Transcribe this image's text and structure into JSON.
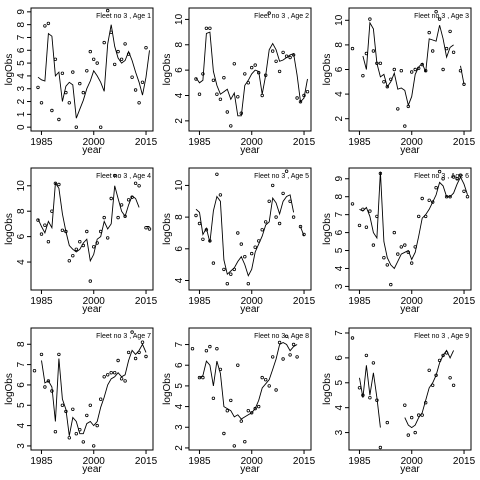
{
  "chart_data": [
    {
      "type": "scatter",
      "title": "Fleet no 3 , Age 1",
      "xlabel": "year",
      "ylabel": "logObs",
      "xlim": [
        1982,
        2017
      ],
      "ylim": [
        -0.3,
        9.3
      ],
      "xticks": [
        1985,
        2000,
        2015
      ],
      "yticks": [
        0,
        1,
        2,
        3,
        4,
        5,
        6,
        7,
        8,
        9
      ],
      "years": [
        1983,
        1984,
        1985,
        1986,
        1987,
        1988,
        1989,
        1990,
        1991,
        1992,
        1993,
        1994,
        1995,
        1996,
        1997,
        1998,
        1999,
        2000,
        2001,
        2002,
        2003,
        2004,
        2005,
        2006,
        2007,
        2008,
        2009,
        2010,
        2011,
        2012,
        2013,
        2014,
        2015,
        2016
      ],
      "observed": [
        null,
        3.1,
        1.9,
        7.9,
        8.1,
        1.3,
        5.3,
        0.6,
        4.2,
        2.7,
        1.9,
        4.3,
        0.0,
        3.4,
        2.7,
        4.4,
        5.9,
        5.3,
        5.0,
        0.0,
        6.6,
        9.1,
        7.4,
        4.9,
        5.9,
        5.3,
        6.5,
        5.7,
        3.9,
        2.9,
        1.9,
        3.5,
        6.2,
        null
      ],
      "fitted": [
        null,
        3.9,
        3.7,
        3.6,
        7.3,
        7.1,
        4.0,
        4.3,
        2.0,
        3.2,
        3.5,
        3.3,
        0.7,
        1.4,
        2.1,
        3.0,
        3.6,
        4.4,
        4.0,
        3.5,
        2.8,
        6.5,
        8.0,
        6.3,
        5.4,
        5.0,
        5.2,
        5.9,
        5.2,
        4.3,
        3.5,
        2.5,
        3.9,
        6.0
      ]
    },
    {
      "type": "scatter",
      "title": "Fleet no 3 , Age 2",
      "xlabel": "year",
      "ylabel": "logObs",
      "xlim": [
        1982,
        2017
      ],
      "ylim": [
        1.2,
        10.9
      ],
      "xticks": [
        1985,
        2000,
        2015
      ],
      "yticks": [
        2,
        4,
        6,
        8,
        10
      ],
      "years": [
        1983,
        1984,
        1985,
        1986,
        1987,
        1988,
        1989,
        1990,
        1991,
        1992,
        1993,
        1994,
        1995,
        1996,
        1997,
        1998,
        1999,
        2000,
        2001,
        2002,
        2003,
        2004,
        2005,
        2006,
        2007,
        2008,
        2009,
        2010,
        2011,
        2012,
        2013,
        2014,
        2015,
        2016
      ],
      "observed": [
        null,
        5.3,
        4.1,
        5.7,
        9.3,
        9.3,
        5.2,
        4.1,
        3.7,
        5.4,
        2.7,
        1.6,
        6.5,
        3.9,
        2.6,
        5.7,
        5.0,
        6.2,
        6.4,
        5.8,
        4.0,
        5.6,
        10.5,
        7.5,
        6.7,
        5.9,
        7.4,
        7.1,
        7.0,
        7.2,
        3.8,
        3.5,
        4.0,
        4.3
      ],
      "fitted": [
        null,
        5.4,
        5.0,
        5.2,
        8.9,
        9.0,
        5.9,
        4.8,
        4.1,
        4.3,
        4.5,
        3.7,
        4.2,
        2.4,
        2.4,
        4.8,
        5.2,
        5.7,
        6.0,
        5.9,
        4.1,
        5.6,
        7.6,
        8.1,
        7.6,
        6.7,
        6.8,
        7.0,
        7.2,
        7.3,
        5.6,
        3.5,
        3.8,
        5.3
      ]
    },
    {
      "type": "scatter",
      "title": "Fleet no 3 , Age 3",
      "xlabel": "year",
      "ylabel": "logObs",
      "xlim": [
        1982,
        2017
      ],
      "ylim": [
        1.0,
        11.0
      ],
      "xticks": [
        1985,
        2000,
        2015
      ],
      "yticks": [
        2,
        4,
        6,
        8,
        10
      ],
      "years": [
        1983,
        1984,
        1985,
        1986,
        1987,
        1988,
        1989,
        1990,
        1991,
        1992,
        1993,
        1994,
        1995,
        1996,
        1997,
        1998,
        1999,
        2000,
        2001,
        2002,
        2003,
        2004,
        2005,
        2006,
        2007,
        2008,
        2009,
        2010,
        2011,
        2012,
        2013,
        2014,
        2015,
        2016
      ],
      "observed": [
        7.7,
        null,
        null,
        5.5,
        7.3,
        10.1,
        7.5,
        6.5,
        6.5,
        5.0,
        4.6,
        5.2,
        6.0,
        2.8,
        5.9,
        1.4,
        3.0,
        5.8,
        6.0,
        6.1,
        6.4,
        5.9,
        9.0,
        7.5,
        10.7,
        10.1,
        6.0,
        7.7,
        9.1,
        7.4,
        null,
        5.9,
        4.8,
        null
      ],
      "fitted": [
        7.7,
        null,
        null,
        7.1,
        6.0,
        9.8,
        9.3,
        6.5,
        5.4,
        5.6,
        4.6,
        5.0,
        5.7,
        4.4,
        4.5,
        4.3,
        3.1,
        3.8,
        5.6,
        6.2,
        6.5,
        5.8,
        8.5,
        8.4,
        8.3,
        9.6,
        8.5,
        7.0,
        7.8,
        8.0,
        null,
        6.3,
        4.8,
        null
      ]
    },
    {
      "type": "scatter",
      "title": "Fleet no 3 , Age 4",
      "xlabel": "year",
      "ylabel": "logObs",
      "xlim": [
        1982,
        2017
      ],
      "ylim": [
        1.8,
        11.4
      ],
      "xticks": [
        1985,
        2000,
        2015
      ],
      "yticks": [
        4,
        6,
        8,
        10
      ],
      "years": [
        1983,
        1984,
        1985,
        1986,
        1987,
        1988,
        1989,
        1990,
        1991,
        1992,
        1993,
        1994,
        1995,
        1996,
        1997,
        1998,
        1999,
        2000,
        2001,
        2002,
        2003,
        2004,
        2005,
        2006,
        2007,
        2008,
        2009,
        2010,
        2011,
        2012,
        2013,
        2014,
        2015,
        2016
      ],
      "observed": [
        null,
        7.3,
        6.2,
        6.9,
        5.6,
        8.0,
        10.2,
        10.1,
        6.5,
        6.4,
        4.1,
        4.5,
        5.0,
        5.6,
        5.3,
        6.4,
        2.5,
        5.2,
        5.5,
        6.4,
        7.5,
        5.9,
        9.0,
        10.8,
        7.5,
        8.5,
        7.6,
        8.9,
        9.1,
        10.2,
        10.0,
        null,
        6.7,
        6.6
      ],
      "fitted": [
        null,
        7.4,
        6.8,
        6.3,
        7.2,
        6.7,
        10.2,
        9.8,
        7.8,
        6.4,
        5.3,
        5.0,
        4.8,
        5.0,
        5.5,
        5.8,
        4.1,
        4.6,
        5.8,
        6.0,
        7.2,
        6.6,
        7.0,
        10.0,
        9.0,
        8.0,
        7.6,
        8.5,
        9.2,
        9.0,
        8.3,
        null,
        6.8,
        6.8
      ]
    },
    {
      "type": "scatter",
      "title": "Fleet no 3 , Age 5",
      "xlabel": "year",
      "ylabel": "logObs",
      "xlim": [
        1982,
        2017
      ],
      "ylim": [
        3.4,
        11.1
      ],
      "xticks": [
        1985,
        2000,
        2015
      ],
      "yticks": [
        4,
        6,
        8,
        10
      ],
      "years": [
        1983,
        1984,
        1985,
        1986,
        1987,
        1988,
        1989,
        1990,
        1991,
        1992,
        1993,
        1994,
        1995,
        1996,
        1997,
        1998,
        1999,
        2000,
        2001,
        2002,
        2003,
        2004,
        2005,
        2006,
        2007,
        2008,
        2009,
        2010,
        2011,
        2012,
        2013,
        2014,
        2015,
        2016
      ],
      "observed": [
        null,
        8.1,
        7.6,
        6.6,
        7.2,
        6.5,
        5.1,
        10.7,
        9.4,
        4.7,
        3.8,
        4.4,
        4.7,
        7.0,
        6.3,
        5.5,
        3.8,
        5.7,
        6.1,
        6.5,
        7.2,
        7.7,
        9.0,
        10.0,
        8.0,
        7.6,
        9.5,
        10.9,
        9.0,
        8.0,
        null,
        7.4,
        6.9,
        null
      ],
      "fitted": [
        null,
        8.5,
        8.3,
        6.9,
        7.3,
        6.4,
        8.4,
        9.3,
        9.0,
        5.3,
        4.4,
        4.6,
        4.8,
        5.2,
        5.5,
        5.0,
        4.3,
        4.7,
        5.8,
        6.3,
        6.8,
        7.5,
        7.7,
        9.2,
        8.9,
        8.2,
        9.0,
        9.3,
        9.4,
        8.3,
        null,
        7.4,
        6.8,
        null
      ]
    },
    {
      "type": "scatter",
      "title": "Fleet no 3 , Age 6",
      "xlabel": "year",
      "ylabel": "logObs",
      "xlim": [
        1982,
        2017
      ],
      "ylim": [
        2.8,
        9.6
      ],
      "xticks": [
        1985,
        2000,
        2015
      ],
      "yticks": [
        3,
        4,
        5,
        6,
        7,
        8,
        9
      ],
      "years": [
        1983,
        1984,
        1985,
        1986,
        1987,
        1988,
        1989,
        1990,
        1991,
        1992,
        1993,
        1994,
        1995,
        1996,
        1997,
        1998,
        1999,
        2000,
        2001,
        2002,
        2003,
        2004,
        2005,
        2006,
        2007,
        2008,
        2009,
        2010,
        2011,
        2012,
        2013,
        2014,
        2015,
        2016
      ],
      "observed": [
        7.6,
        null,
        6.4,
        7.3,
        6.3,
        7.2,
        5.3,
        6.9,
        9.3,
        4.6,
        4.2,
        3.1,
        6.0,
        4.8,
        5.2,
        5.3,
        4.9,
        4.3,
        5.2,
        6.9,
        7.9,
        6.9,
        7.8,
        7.7,
        8.5,
        9.4,
        9.0,
        8.0,
        8.0,
        9.1,
        9.0,
        9.2,
        8.3,
        8.0
      ],
      "fitted": [
        7.8,
        null,
        7.3,
        7.2,
        7.4,
        6.9,
        6.0,
        5.7,
        9.4,
        5.5,
        4.6,
        4.2,
        4.0,
        4.4,
        4.8,
        4.9,
        5.0,
        4.5,
        4.9,
        5.8,
        6.8,
        7.0,
        7.3,
        7.7,
        8.1,
        8.8,
        8.6,
        8.0,
        8.0,
        8.2,
        8.7,
        9.1,
        8.7,
        8.1
      ]
    },
    {
      "type": "scatter",
      "title": "Fleet no 3 , Age 7",
      "xlabel": "year",
      "ylabel": "logObs",
      "xlim": [
        1982,
        2017
      ],
      "ylim": [
        2.8,
        8.8
      ],
      "xticks": [
        1985,
        2000,
        2015
      ],
      "yticks": [
        3,
        4,
        5,
        6,
        7,
        8
      ],
      "years": [
        1983,
        1984,
        1985,
        1986,
        1987,
        1988,
        1989,
        1990,
        1991,
        1992,
        1993,
        1994,
        1995,
        1996,
        1997,
        1998,
        1999,
        2000,
        2001,
        2002,
        2003,
        2004,
        2005,
        2006,
        2007,
        2008,
        2009,
        2010,
        2011,
        2012,
        2013,
        2014,
        2015,
        2016
      ],
      "observed": [
        6.7,
        null,
        7.5,
        5.9,
        6.2,
        5.7,
        3.7,
        7.5,
        5.0,
        4.7,
        3.4,
        4.8,
        3.6,
        3.8,
        3.2,
        4.5,
        5.0,
        3.0,
        4.0,
        5.3,
        6.4,
        6.5,
        6.6,
        6.6,
        7.2,
        6.3,
        6.2,
        7.6,
        8.6,
        7.3,
        7.6,
        8.1,
        7.4,
        null
      ],
      "fitted": [
        6.8,
        null,
        7.2,
        6.1,
        6.2,
        5.9,
        4.2,
        7.3,
        5.3,
        4.8,
        3.5,
        4.4,
        4.2,
        3.6,
        3.6,
        4.1,
        4.2,
        4.0,
        4.2,
        4.9,
        5.4,
        6.0,
        6.3,
        6.4,
        6.6,
        6.4,
        6.5,
        7.2,
        7.7,
        7.5,
        7.7,
        8.0,
        7.6,
        null
      ]
    },
    {
      "type": "scatter",
      "title": "Fleet no 3 , Age 8",
      "xlabel": "year",
      "ylabel": "logObs",
      "xlim": [
        1982,
        2017
      ],
      "ylim": [
        1.9,
        7.8
      ],
      "xticks": [
        1985,
        2000,
        2015
      ],
      "yticks": [
        2,
        3,
        4,
        5,
        6,
        7
      ],
      "years": [
        1983,
        1984,
        1985,
        1986,
        1987,
        1988,
        1989,
        1990,
        1991,
        1992,
        1993,
        1994,
        1995,
        1996,
        1997,
        1998,
        1999,
        2000,
        2001,
        2002,
        2003,
        2004,
        2005,
        2006,
        2007,
        2008,
        2009,
        2010,
        2011,
        2012,
        2013,
        2014,
        2015,
        2016
      ],
      "observed": [
        6.8,
        null,
        5.4,
        5.4,
        6.7,
        6.9,
        4.4,
        6.8,
        5.8,
        2.7,
        3.8,
        4.3,
        2.1,
        6.0,
        3.3,
        2.3,
        3.8,
        3.7,
        3.9,
        4.0,
        5.4,
        5.3,
        5.0,
        6.4,
        4.8,
        7.1,
        6.3,
        7.4,
        6.5,
        7.0,
        6.4,
        null,
        null,
        null
      ],
      "fitted": [
        6.6,
        null,
        5.4,
        5.5,
        6.2,
        6.0,
        5.0,
        6.2,
        5.6,
        4.0,
        3.9,
        3.8,
        3.5,
        3.6,
        3.4,
        3.5,
        3.6,
        3.7,
        3.9,
        4.3,
        4.9,
        5.1,
        5.3,
        5.8,
        6.3,
        7.0,
        7.1,
        7.0,
        6.7,
        6.9,
        7.0,
        null,
        null,
        null
      ]
    },
    {
      "type": "scatter",
      "title": "Fleet no 3 , Age 9",
      "xlabel": "year",
      "ylabel": "logObs",
      "xlim": [
        1982,
        2017
      ],
      "ylim": [
        2.3,
        7.2
      ],
      "xticks": [
        1985,
        2000,
        2015
      ],
      "yticks": [
        3,
        4,
        5,
        6,
        7
      ],
      "years": [
        1983,
        1984,
        1985,
        1986,
        1987,
        1988,
        1989,
        1990,
        1991,
        1992,
        1993,
        1994,
        1995,
        1996,
        1997,
        1998,
        1999,
        2000,
        2001,
        2002,
        2003,
        2004,
        2005,
        2006,
        2007,
        2008,
        2009,
        2010,
        2011,
        2012,
        2013,
        2014,
        2015,
        2016
      ],
      "observed": [
        6.8,
        null,
        4.8,
        4.5,
        6.1,
        4.4,
        5.8,
        4.3,
        2.4,
        null,
        3.4,
        null,
        null,
        null,
        null,
        4.1,
        2.9,
        3.6,
        3.0,
        3.7,
        3.7,
        4.2,
        5.5,
        4.9,
        5.3,
        5.9,
        6.1,
        6.2,
        5.2,
        4.9,
        null,
        null,
        null,
        null
      ],
      "fitted": [
        6.8,
        null,
        5.2,
        4.4,
        5.7,
        4.5,
        5.4,
        4.4,
        3.2,
        null,
        2.4,
        null,
        null,
        null,
        null,
        3.6,
        3.3,
        3.2,
        3.3,
        3.6,
        3.8,
        4.3,
        4.8,
        5.0,
        5.3,
        5.8,
        6.1,
        6.3,
        6.0,
        6.3,
        null,
        null,
        null,
        null
      ]
    }
  ]
}
